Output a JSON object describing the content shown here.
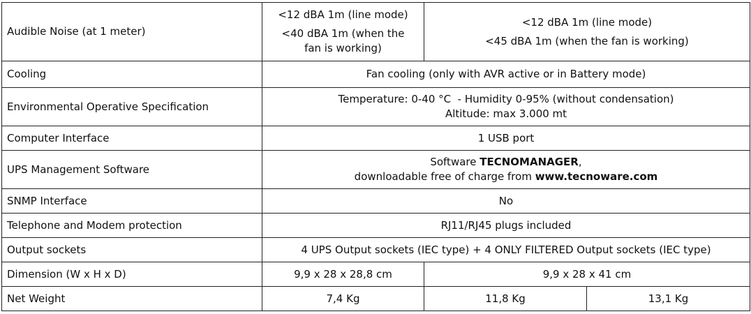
{
  "rows": [
    {
      "label": "Audible Noise (at 1 meter)",
      "cells": [
        {
          "span": 1,
          "lines": [
            [
              {
                "t": "<12 dBA 1m (line mode)"
              }
            ],
            [
              {
                "t": "<40 dBA 1m (when the"
              }
            ],
            [
              {
                "t": "fan is working)"
              }
            ]
          ]
        },
        {
          "span": 2,
          "lines": [
            [
              {
                "t": "<12 dBA 1m (line mode)"
              }
            ],
            [
              {
                "t": "<45 dBA 1m (when the fan is working)"
              }
            ]
          ]
        }
      ]
    },
    {
      "label": "Cooling",
      "cells": [
        {
          "span": 3,
          "lines": [
            [
              {
                "t": "Fan cooling (only with AVR active or in Battery mode)"
              }
            ]
          ]
        }
      ]
    },
    {
      "label": "Environmental Operative Specification",
      "cells": [
        {
          "span": 3,
          "lines": [
            [
              {
                "t": "Temperature: 0-40 °C  - Humidity 0-95% (without condensation)"
              }
            ],
            [
              {
                "t": "Altitude: max 3.000 mt"
              }
            ]
          ]
        }
      ]
    },
    {
      "label": "Computer Interface",
      "cells": [
        {
          "span": 3,
          "lines": [
            [
              {
                "t": "1 USB port"
              }
            ]
          ]
        }
      ]
    },
    {
      "label": "UPS Management Software",
      "cells": [
        {
          "span": 3,
          "lines": [
            [
              {
                "t": "Software "
              },
              {
                "t": "TECNOMANAGER",
                "b": true
              },
              {
                "t": ","
              }
            ],
            [
              {
                "t": "downloadable free of charge from "
              },
              {
                "t": "www.tecnoware.com",
                "b": true
              }
            ]
          ]
        }
      ]
    },
    {
      "label": "SNMP Interface",
      "cells": [
        {
          "span": 3,
          "lines": [
            [
              {
                "t": "No"
              }
            ]
          ]
        }
      ]
    },
    {
      "label": "Telephone and Modem protection",
      "cells": [
        {
          "span": 3,
          "lines": [
            [
              {
                "t": "RJ11/RJ45 plugs included"
              }
            ]
          ]
        }
      ]
    },
    {
      "label": "Output sockets",
      "cells": [
        {
          "span": 3,
          "lines": [
            [
              {
                "t": "4 UPS Output sockets (IEC type) + 4 ONLY FILTERED Output sockets (IEC type)"
              }
            ]
          ]
        }
      ]
    },
    {
      "label": "Dimension (W x H x D)",
      "cells": [
        {
          "span": 1,
          "lines": [
            [
              {
                "t": "9,9 x 28 x 28,8 cm"
              }
            ]
          ]
        },
        {
          "span": 2,
          "lines": [
            [
              {
                "t": "9,9 x 28 x 41 cm"
              }
            ]
          ]
        }
      ]
    },
    {
      "label": "Net Weight",
      "cells": [
        {
          "span": 1,
          "lines": [
            [
              {
                "t": "7,4 Kg"
              }
            ]
          ]
        },
        {
          "span": 1,
          "lines": [
            [
              {
                "t": "11,8 Kg"
              }
            ]
          ]
        },
        {
          "span": 1,
          "lines": [
            [
              {
                "t": "13,1 Kg"
              }
            ]
          ]
        }
      ]
    }
  ]
}
